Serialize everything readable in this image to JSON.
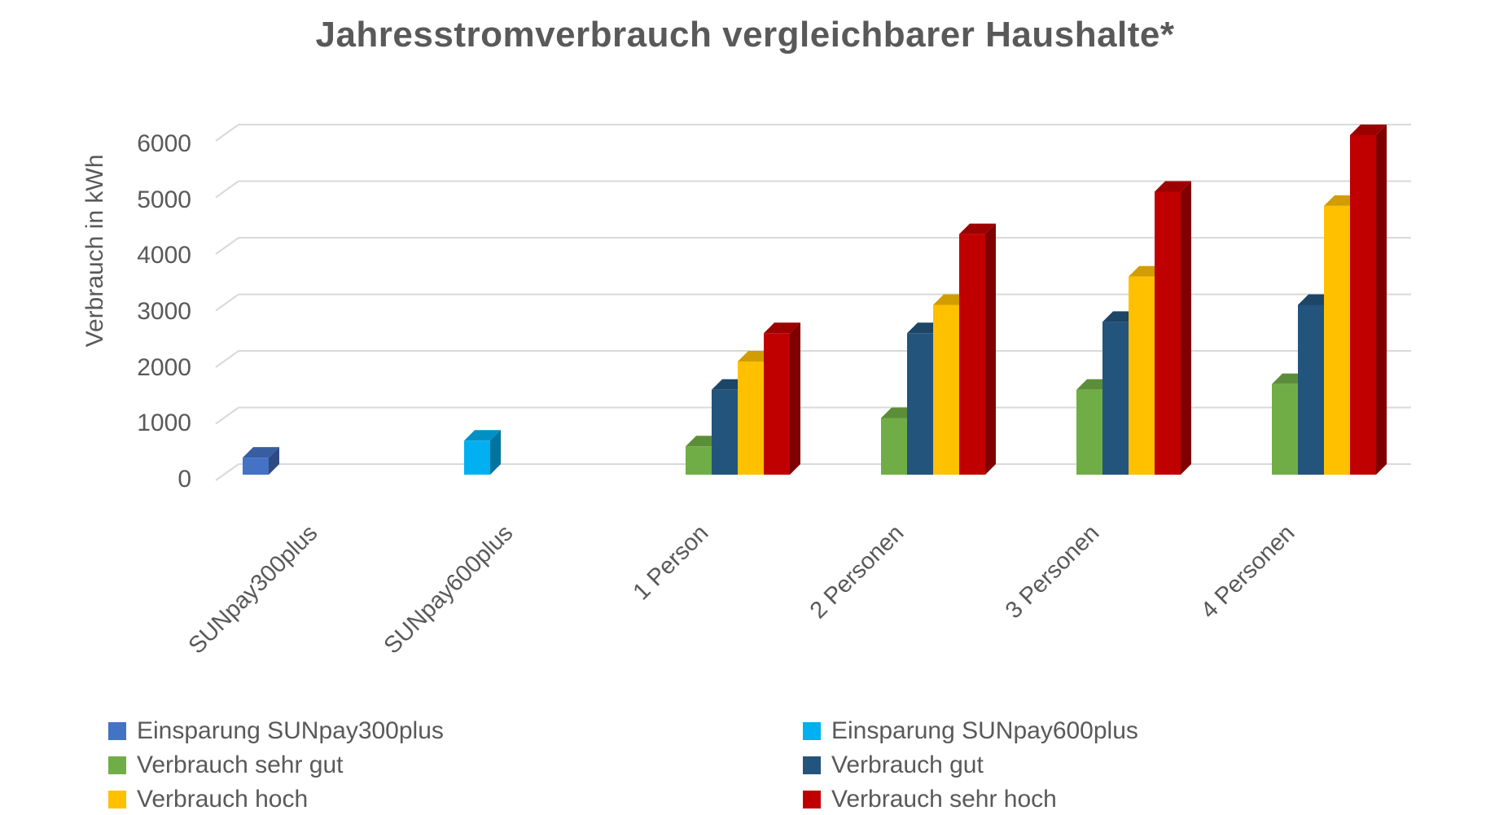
{
  "chart_data": {
    "type": "bar",
    "subtype": "3d-clustered-column",
    "title": "Jahresstromverbrauch vergleichbarer Haushalte*",
    "xlabel": "",
    "ylabel": "Verbrauch in kWh",
    "ylim": [
      0,
      6000
    ],
    "ytick_step": 1000,
    "yticks": [
      "0",
      "1000",
      "2000",
      "3000",
      "4000",
      "5000",
      "6000"
    ],
    "grid": true,
    "legend_position": "bottom-two-columns",
    "categories": [
      "SUNpay300plus",
      "SUNpay600plus",
      "1 Person",
      "2 Personen",
      "3 Personen",
      "4 Personen"
    ],
    "series": [
      {
        "name": "Einsparung SUNpay300plus",
        "color": "#4472C4",
        "values": [
          300,
          null,
          null,
          null,
          null,
          null
        ]
      },
      {
        "name": "Einsparung SUNpay600plus",
        "color": "#00B0F0",
        "values": [
          null,
          600,
          null,
          null,
          null,
          null
        ]
      },
      {
        "name": "Verbrauch sehr gut",
        "color": "#70AD47",
        "values": [
          null,
          null,
          500,
          1000,
          1500,
          1600
        ]
      },
      {
        "name": "Verbrauch gut",
        "color": "#23547C",
        "values": [
          null,
          null,
          1500,
          2500,
          2700,
          3000
        ]
      },
      {
        "name": "Verbrauch hoch",
        "color": "#FFC000",
        "values": [
          null,
          null,
          2000,
          3000,
          3500,
          4750
        ]
      },
      {
        "name": "Verbrauch sehr hoch",
        "color": "#C00000",
        "values": [
          null,
          null,
          2500,
          4250,
          5000,
          6000
        ]
      }
    ]
  },
  "colors": {
    "title_text": "#595959",
    "axis_text": "#595959",
    "legend_text": "#595959",
    "gridline": "#D9D9D9",
    "background": "#FFFFFF"
  }
}
